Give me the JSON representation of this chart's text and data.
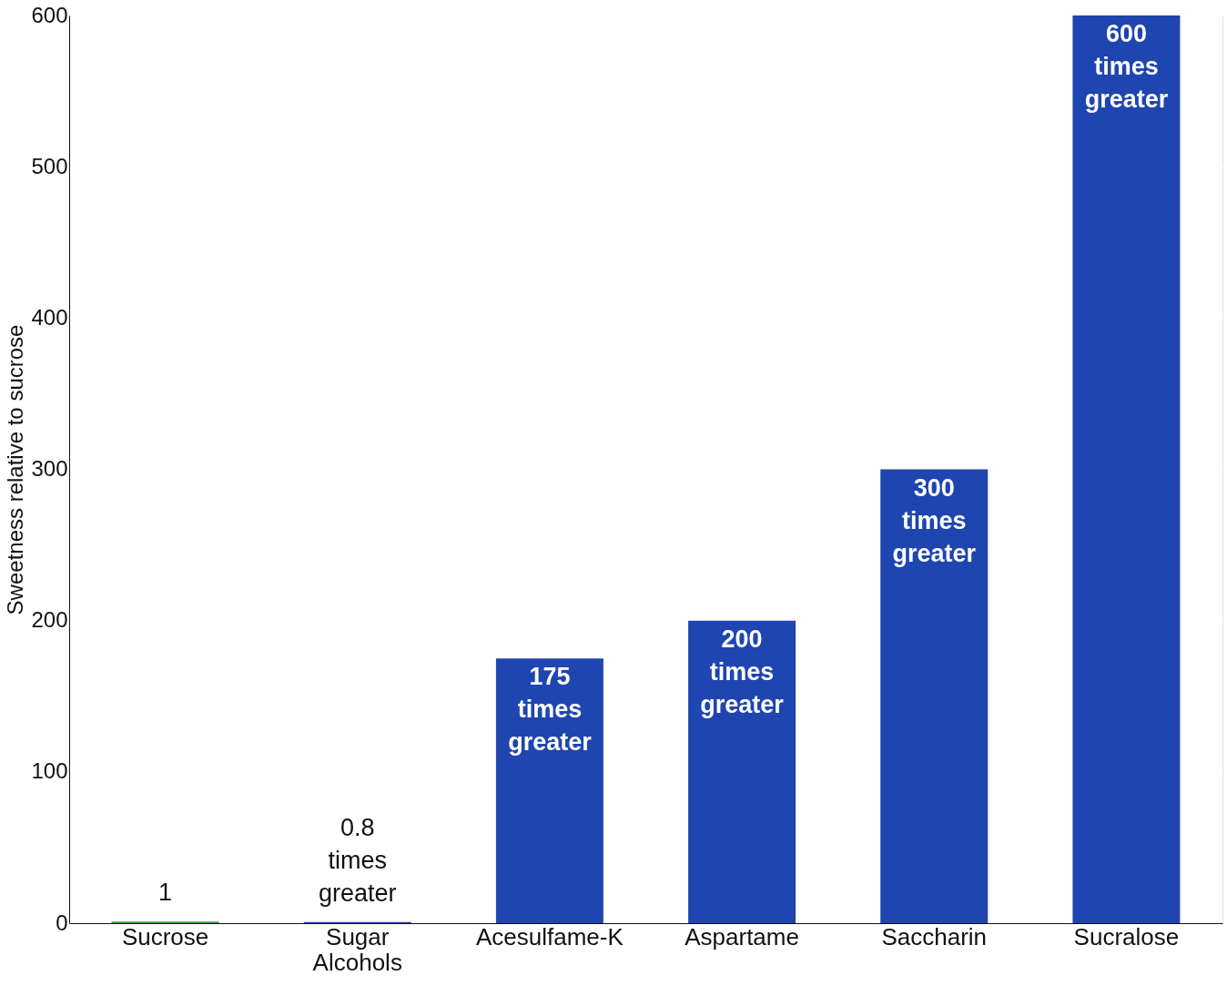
{
  "chart_data": {
    "type": "bar",
    "ylabel": "Sweetness relative to sucrose",
    "categories": [
      "Sucrose",
      "Sugar Alcohols",
      "Acesulfame-K",
      "Aspartame",
      "Saccharin",
      "Sucralose"
    ],
    "values": [
      1,
      0.8,
      175,
      200,
      300,
      600
    ],
    "colors": [
      "#3f9a3c",
      "#1f45b0",
      "#1f45b0",
      "#1f45b0",
      "#1f45b0",
      "#1f45b0"
    ],
    "value_labels": [
      "1",
      "0.8 times greater",
      "175 times greater",
      "200 times greater",
      "300 times greater",
      "600 times greater"
    ],
    "ylim": [
      0,
      600
    ],
    "yticks": [
      0,
      100,
      200,
      300,
      400,
      500,
      600
    ],
    "grid": "y"
  }
}
